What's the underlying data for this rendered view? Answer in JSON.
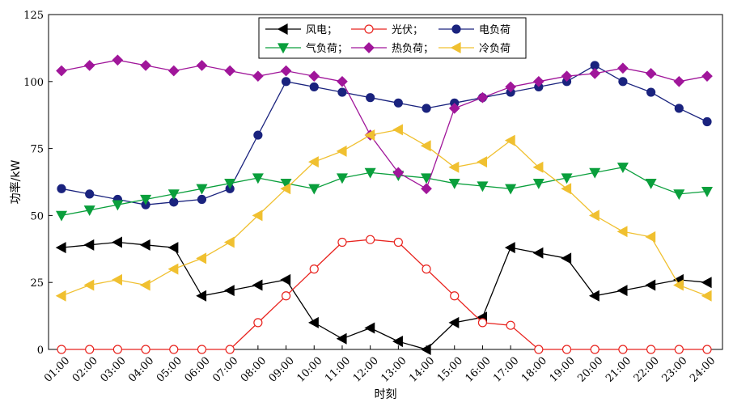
{
  "chart_data": {
    "type": "line",
    "xlabel": "时刻",
    "ylabel": "功率/kW",
    "ylim": [
      0,
      125
    ],
    "yticks": [
      0,
      25,
      50,
      75,
      100,
      125
    ],
    "categories": [
      "01:00",
      "02:00",
      "03:00",
      "04:00",
      "05:00",
      "06:00",
      "07:00",
      "08:00",
      "09:00",
      "10:00",
      "11:00",
      "12:00",
      "13:00",
      "14:00",
      "15:00",
      "16:00",
      "17:00",
      "18:00",
      "19:00",
      "20:00",
      "21:00",
      "22:00",
      "23:00",
      "24:00"
    ],
    "grid": false,
    "legend_position": "top-center",
    "series": [
      {
        "name": "风电；",
        "color": "#000000",
        "marker": "triangle-left",
        "filled": true,
        "values": [
          38,
          39,
          40,
          39,
          38,
          20,
          22,
          24,
          26,
          10,
          4,
          8,
          3,
          0,
          10,
          12,
          38,
          36,
          34,
          20,
          22,
          24,
          26,
          25
        ]
      },
      {
        "name": "光伏；",
        "color": "#e8231e",
        "marker": "circle",
        "filled": false,
        "values": [
          0,
          0,
          0,
          0,
          0,
          0,
          0,
          10,
          20,
          30,
          40,
          41,
          40,
          30,
          20,
          10,
          9,
          0,
          0,
          0,
          0,
          0,
          0,
          0
        ]
      },
      {
        "name": "电负荷",
        "color": "#1a237e",
        "marker": "circle",
        "filled": true,
        "values": [
          60,
          58,
          56,
          54,
          55,
          56,
          60,
          80,
          100,
          98,
          96,
          94,
          92,
          90,
          92,
          94,
          96,
          98,
          100,
          106,
          100,
          96,
          90,
          85
        ]
      },
      {
        "name": "气负荷；",
        "color": "#0a9f3c",
        "marker": "triangle-down",
        "filled": true,
        "values": [
          50,
          52,
          54,
          56,
          58,
          60,
          62,
          64,
          62,
          60,
          64,
          66,
          65,
          64,
          62,
          61,
          60,
          62,
          64,
          66,
          68,
          62,
          58,
          59
        ]
      },
      {
        "name": "热负荷；",
        "color": "#a0169a",
        "marker": "diamond",
        "filled": true,
        "values": [
          104,
          106,
          108,
          106,
          104,
          106,
          104,
          102,
          104,
          102,
          100,
          80,
          66,
          60,
          90,
          94,
          98,
          100,
          102,
          103,
          105,
          103,
          100,
          102
        ]
      },
      {
        "name": "冷负荷",
        "color": "#f0c030",
        "marker": "triangle-left",
        "filled": true,
        "values": [
          20,
          24,
          26,
          24,
          30,
          34,
          40,
          50,
          60,
          70,
          74,
          80,
          82,
          76,
          68,
          70,
          78,
          68,
          60,
          50,
          44,
          42,
          24,
          20
        ]
      }
    ]
  }
}
